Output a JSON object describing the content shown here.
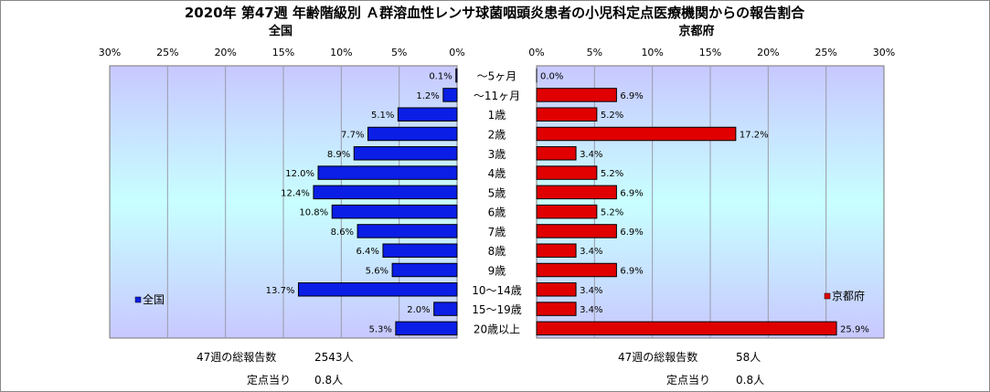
{
  "title": "2020年 第47週 年齢階級別 Ａ群溶血性レンサ球菌咽頭炎患者の小児科定点医療機関からの報告割合",
  "colors": {
    "national": "#0a1ee6",
    "kyoto": "#e00000",
    "plot_bg_top": "#c8c8ff",
    "plot_bg_mid": "#c8ffff"
  },
  "chart_data": [
    {
      "type": "bar",
      "orientation": "horizontal",
      "direction": "right-to-left",
      "title": "全国",
      "legend": "全国",
      "legend_position": "bottom-left",
      "xlim": [
        0,
        30
      ],
      "ticks": [
        "30%",
        "25%",
        "20%",
        "15%",
        "10%",
        "5%",
        "0%"
      ],
      "tick_values": [
        30,
        25,
        20,
        15,
        10,
        5,
        0
      ],
      "categories": [
        "～5ヶ月",
        "～11ヶ月",
        "1歳",
        "2歳",
        "3歳",
        "4歳",
        "5歳",
        "6歳",
        "7歳",
        "8歳",
        "9歳",
        "10～14歳",
        "15～19歳",
        "20歳以上"
      ],
      "values": [
        0.1,
        1.2,
        5.1,
        7.7,
        8.9,
        12.0,
        12.4,
        10.8,
        8.6,
        6.4,
        5.6,
        13.7,
        2.0,
        5.3
      ],
      "labels": [
        "0.1%",
        "1.2%",
        "5.1%",
        "7.7%",
        "8.9%",
        "12.0%",
        "12.4%",
        "10.8%",
        "8.6%",
        "6.4%",
        "5.6%",
        "13.7%",
        "2.0%",
        "5.3%"
      ],
      "grid": true
    },
    {
      "type": "bar",
      "orientation": "horizontal",
      "direction": "left-to-right",
      "title": "京都府",
      "legend": "京都府",
      "legend_position": "bottom-right",
      "xlim": [
        0,
        30
      ],
      "ticks": [
        "0%",
        "5%",
        "10%",
        "15%",
        "20%",
        "25%",
        "30%"
      ],
      "tick_values": [
        0,
        5,
        10,
        15,
        20,
        25,
        30
      ],
      "categories": [
        "～5ヶ月",
        "～11ヶ月",
        "1歳",
        "2歳",
        "3歳",
        "4歳",
        "5歳",
        "6歳",
        "7歳",
        "8歳",
        "9歳",
        "10～14歳",
        "15～19歳",
        "20歳以上"
      ],
      "values": [
        0.0,
        6.9,
        5.2,
        17.2,
        3.4,
        5.2,
        6.9,
        5.2,
        6.9,
        3.4,
        6.9,
        3.4,
        3.4,
        25.9
      ],
      "labels": [
        "0.0%",
        "6.9%",
        "5.2%",
        "17.2%",
        "3.4%",
        "5.2%",
        "6.9%",
        "5.2%",
        "6.9%",
        "3.4%",
        "6.9%",
        "3.4%",
        "3.4%",
        "25.9%"
      ],
      "grid": true
    }
  ],
  "footer": {
    "national": {
      "total_label": "47週の総報告数",
      "total_value": "2543人",
      "per_label": "定点当り",
      "per_value": "0.8人"
    },
    "kyoto": {
      "total_label": "47週の総報告数",
      "total_value": "58人",
      "per_label": "定点当り",
      "per_value": "0.8人"
    }
  }
}
